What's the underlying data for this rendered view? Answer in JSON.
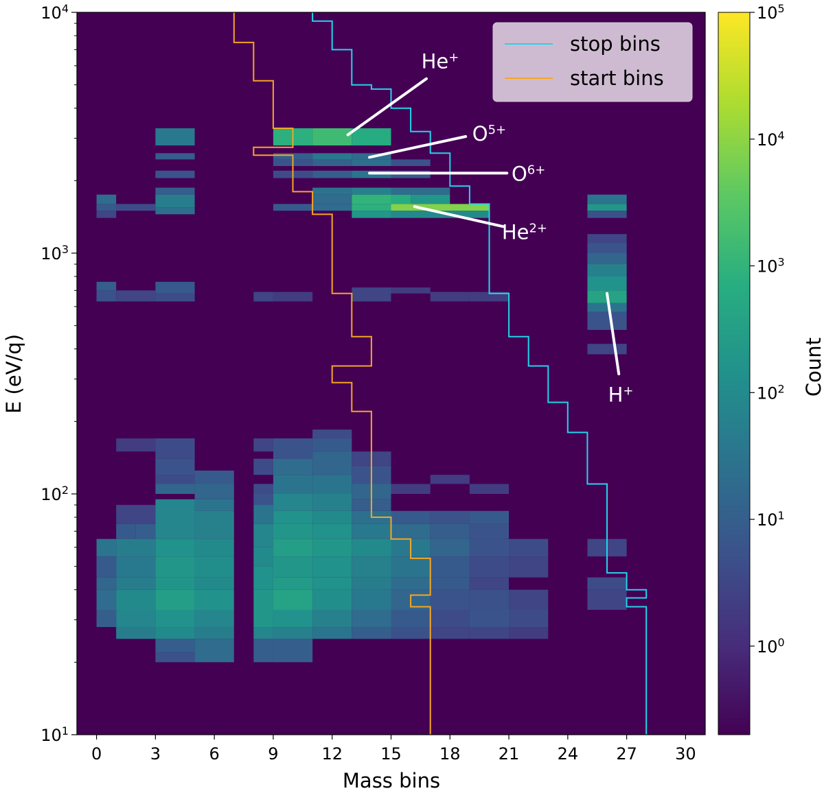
{
  "chart_data": {
    "type": "heatmap",
    "xlabel": "Mass bins",
    "ylabel": "E (eV/q)",
    "x_range": [
      -1,
      31
    ],
    "y_scale": "log",
    "y_range": [
      10,
      10000
    ],
    "x_ticks": [
      0,
      3,
      6,
      9,
      12,
      15,
      18,
      21,
      24,
      27,
      30
    ],
    "y_ticks": [
      {
        "base": "10",
        "exp": "1",
        "value": 10
      },
      {
        "base": "10",
        "exp": "2",
        "value": 100
      },
      {
        "base": "10",
        "exp": "3",
        "value": 1000
      },
      {
        "base": "10",
        "exp": "4",
        "value": 10000
      }
    ],
    "background_color": "#440154",
    "colorbar": {
      "label": "Count",
      "scale": "log",
      "range": [
        0.2,
        100000
      ],
      "ticks": [
        {
          "base": "10",
          "exp": "0",
          "value": 1
        },
        {
          "base": "10",
          "exp": "1",
          "value": 10
        },
        {
          "base": "10",
          "exp": "2",
          "value": 100
        },
        {
          "base": "10",
          "exp": "3",
          "value": 1000
        },
        {
          "base": "10",
          "exp": "4",
          "value": 10000
        },
        {
          "base": "10",
          "exp": "5",
          "value": 100000
        }
      ]
    },
    "cells_columns": [
      "mass_start",
      "mass_end",
      "e_low",
      "e_high",
      "count"
    ],
    "cells": [
      [
        3,
        5,
        2800,
        3300,
        40
      ],
      [
        3,
        5,
        2450,
        2600,
        10
      ],
      [
        3,
        5,
        2050,
        2200,
        6
      ],
      [
        3,
        5,
        1750,
        1870,
        10
      ],
      [
        3,
        5,
        1550,
        1750,
        50
      ],
      [
        3,
        5,
        1450,
        1550,
        25
      ],
      [
        0,
        1,
        1600,
        1750,
        20
      ],
      [
        0,
        1,
        1500,
        1600,
        8
      ],
      [
        0,
        1,
        1400,
        1500,
        3
      ],
      [
        1,
        3,
        1500,
        1600,
        4
      ],
      [
        0,
        1,
        700,
        760,
        10
      ],
      [
        0,
        1,
        630,
        700,
        5
      ],
      [
        1,
        3,
        630,
        700,
        3
      ],
      [
        3,
        5,
        680,
        760,
        8
      ],
      [
        3,
        5,
        630,
        680,
        4
      ],
      [
        9,
        11,
        2800,
        3300,
        800
      ],
      [
        11,
        13,
        2800,
        3300,
        1500
      ],
      [
        13,
        15,
        2800,
        3300,
        600
      ],
      [
        9,
        11,
        2450,
        2600,
        10
      ],
      [
        11,
        13,
        2450,
        2600,
        40
      ],
      [
        13,
        15,
        2450,
        2600,
        20
      ],
      [
        9,
        11,
        2300,
        2450,
        6
      ],
      [
        11,
        13,
        2300,
        2450,
        12
      ],
      [
        13,
        15,
        2300,
        2450,
        25
      ],
      [
        15,
        17,
        2300,
        2450,
        5
      ],
      [
        9,
        11,
        2050,
        2200,
        4
      ],
      [
        11,
        13,
        2050,
        2200,
        10
      ],
      [
        13,
        15,
        2050,
        2200,
        30
      ],
      [
        15,
        17,
        2050,
        2200,
        8
      ],
      [
        11,
        13,
        1750,
        1870,
        30
      ],
      [
        13,
        15,
        1750,
        1870,
        60
      ],
      [
        15,
        18,
        1750,
        1870,
        20
      ],
      [
        11,
        13,
        1600,
        1750,
        20
      ],
      [
        13,
        15,
        1600,
        1750,
        1000
      ],
      [
        15,
        16,
        1600,
        1750,
        600
      ],
      [
        16,
        18,
        1600,
        1750,
        200
      ],
      [
        9,
        11,
        1500,
        1600,
        8
      ],
      [
        11,
        13,
        1500,
        1600,
        20
      ],
      [
        13,
        15,
        1500,
        1600,
        800
      ],
      [
        15,
        20,
        1500,
        1600,
        8000
      ],
      [
        13,
        15,
        1400,
        1500,
        200
      ],
      [
        15,
        20,
        1400,
        1500,
        100
      ],
      [
        8,
        9,
        630,
        690,
        3
      ],
      [
        9,
        11,
        630,
        690,
        2
      ],
      [
        13,
        15,
        630,
        720,
        3
      ],
      [
        15,
        17,
        680,
        720,
        2
      ],
      [
        17,
        19,
        630,
        690,
        2
      ],
      [
        19,
        21,
        630,
        690,
        2
      ],
      [
        25,
        27,
        1600,
        1750,
        30
      ],
      [
        25,
        27,
        1500,
        1600,
        200
      ],
      [
        25,
        27,
        1400,
        1500,
        5
      ],
      [
        25,
        27,
        1100,
        1200,
        3
      ],
      [
        25,
        27,
        1000,
        1100,
        6
      ],
      [
        25,
        27,
        900,
        1000,
        15
      ],
      [
        25,
        27,
        800,
        900,
        60
      ],
      [
        25,
        27,
        700,
        800,
        150
      ],
      [
        25,
        27,
        620,
        700,
        400
      ],
      [
        25,
        27,
        570,
        620,
        30
      ],
      [
        25,
        27,
        480,
        570,
        6
      ],
      [
        25,
        27,
        380,
        420,
        3
      ],
      [
        1,
        3,
        150,
        170,
        2
      ],
      [
        3,
        5,
        140,
        170,
        4
      ],
      [
        3,
        5,
        120,
        140,
        6
      ],
      [
        3,
        5,
        110,
        120,
        4
      ],
      [
        3,
        5,
        100,
        110,
        15
      ],
      [
        5,
        7,
        110,
        125,
        8
      ],
      [
        5,
        7,
        95,
        110,
        15
      ],
      [
        5,
        7,
        85,
        95,
        30
      ],
      [
        1,
        3,
        75,
        90,
        3
      ],
      [
        1,
        2,
        65,
        75,
        8
      ],
      [
        2,
        3,
        65,
        75,
        10
      ],
      [
        3,
        5,
        65,
        95,
        80
      ],
      [
        5,
        7,
        65,
        85,
        60
      ],
      [
        0,
        1,
        55,
        65,
        30
      ],
      [
        1,
        3,
        55,
        65,
        50
      ],
      [
        3,
        5,
        55,
        65,
        150
      ],
      [
        5,
        7,
        55,
        65,
        100
      ],
      [
        0,
        1,
        45,
        55,
        8
      ],
      [
        1,
        3,
        45,
        55,
        40
      ],
      [
        3,
        5,
        45,
        55,
        200
      ],
      [
        5,
        7,
        45,
        55,
        120
      ],
      [
        0,
        1,
        40,
        45,
        15
      ],
      [
        1,
        3,
        40,
        45,
        50
      ],
      [
        3,
        5,
        40,
        45,
        180
      ],
      [
        5,
        7,
        40,
        45,
        100
      ],
      [
        0,
        1,
        33,
        40,
        20
      ],
      [
        1,
        3,
        33,
        40,
        100
      ],
      [
        3,
        5,
        33,
        40,
        300
      ],
      [
        5,
        7,
        33,
        40,
        150
      ],
      [
        0,
        1,
        28,
        33,
        10
      ],
      [
        1,
        3,
        28,
        33,
        80
      ],
      [
        3,
        5,
        28,
        33,
        150
      ],
      [
        5,
        7,
        28,
        33,
        80
      ],
      [
        1,
        3,
        25,
        28,
        50
      ],
      [
        3,
        5,
        25,
        28,
        100
      ],
      [
        5,
        7,
        25,
        28,
        50
      ],
      [
        3,
        5,
        22,
        25,
        10
      ],
      [
        3,
        5,
        20,
        22,
        5
      ],
      [
        5,
        7,
        20,
        25,
        20
      ],
      [
        8,
        9,
        150,
        170,
        3
      ],
      [
        8,
        9,
        120,
        140,
        4
      ],
      [
        8,
        9,
        100,
        110,
        4
      ],
      [
        8,
        9,
        90,
        100,
        6
      ],
      [
        8,
        9,
        75,
        90,
        30
      ],
      [
        8,
        9,
        60,
        75,
        80
      ],
      [
        8,
        9,
        50,
        60,
        100
      ],
      [
        8,
        9,
        40,
        50,
        150
      ],
      [
        8,
        9,
        28,
        40,
        200
      ],
      [
        8,
        9,
        25,
        28,
        80
      ],
      [
        8,
        9,
        20,
        25,
        10
      ],
      [
        9,
        11,
        140,
        170,
        6
      ],
      [
        9,
        11,
        120,
        140,
        20
      ],
      [
        9,
        11,
        100,
        120,
        30
      ],
      [
        9,
        11,
        85,
        100,
        80
      ],
      [
        9,
        11,
        75,
        85,
        150
      ],
      [
        9,
        11,
        65,
        75,
        200
      ],
      [
        9,
        11,
        55,
        65,
        300
      ],
      [
        9,
        11,
        45,
        55,
        200
      ],
      [
        9,
        11,
        40,
        45,
        250
      ],
      [
        9,
        11,
        33,
        40,
        400
      ],
      [
        9,
        11,
        28,
        33,
        150
      ],
      [
        9,
        11,
        25,
        28,
        60
      ],
      [
        9,
        11,
        20,
        25,
        10
      ],
      [
        11,
        13,
        170,
        185,
        4
      ],
      [
        11,
        13,
        150,
        170,
        8
      ],
      [
        11,
        13,
        120,
        150,
        15
      ],
      [
        11,
        13,
        100,
        120,
        30
      ],
      [
        11,
        13,
        85,
        100,
        60
      ],
      [
        11,
        13,
        75,
        85,
        100
      ],
      [
        11,
        13,
        65,
        75,
        150
      ],
      [
        11,
        13,
        55,
        65,
        200
      ],
      [
        11,
        13,
        45,
        55,
        150
      ],
      [
        11,
        13,
        40,
        45,
        150
      ],
      [
        11,
        13,
        33,
        40,
        120
      ],
      [
        11,
        13,
        28,
        33,
        60
      ],
      [
        11,
        13,
        25,
        28,
        30
      ],
      [
        13,
        15,
        130,
        150,
        3
      ],
      [
        13,
        15,
        110,
        130,
        6
      ],
      [
        13,
        15,
        95,
        110,
        15
      ],
      [
        13,
        15,
        85,
        95,
        10
      ],
      [
        13,
        15,
        75,
        85,
        25
      ],
      [
        13,
        15,
        65,
        75,
        40
      ],
      [
        13,
        15,
        55,
        65,
        100
      ],
      [
        13,
        15,
        45,
        55,
        60
      ],
      [
        13,
        15,
        40,
        45,
        50
      ],
      [
        13,
        15,
        33,
        40,
        40
      ],
      [
        13,
        15,
        28,
        33,
        20
      ],
      [
        13,
        15,
        25,
        28,
        10
      ],
      [
        15,
        17,
        100,
        110,
        2
      ],
      [
        15,
        17,
        75,
        85,
        8
      ],
      [
        15,
        17,
        65,
        75,
        20
      ],
      [
        15,
        17,
        55,
        65,
        40
      ],
      [
        15,
        17,
        45,
        55,
        30
      ],
      [
        15,
        17,
        40,
        45,
        20
      ],
      [
        15,
        17,
        33,
        40,
        15
      ],
      [
        15,
        17,
        28,
        33,
        8
      ],
      [
        15,
        17,
        25,
        28,
        5
      ],
      [
        17,
        19,
        110,
        120,
        2
      ],
      [
        17,
        19,
        75,
        85,
        6
      ],
      [
        17,
        19,
        65,
        75,
        10
      ],
      [
        17,
        19,
        55,
        65,
        15
      ],
      [
        17,
        19,
        45,
        55,
        8
      ],
      [
        17,
        19,
        40,
        45,
        8
      ],
      [
        17,
        19,
        33,
        40,
        6
      ],
      [
        17,
        19,
        28,
        33,
        4
      ],
      [
        17,
        19,
        25,
        28,
        3
      ],
      [
        19,
        21,
        100,
        110,
        2
      ],
      [
        19,
        21,
        75,
        85,
        8
      ],
      [
        19,
        21,
        65,
        75,
        6
      ],
      [
        19,
        21,
        55,
        65,
        6
      ],
      [
        19,
        21,
        45,
        55,
        4
      ],
      [
        19,
        21,
        40,
        45,
        3
      ],
      [
        19,
        21,
        33,
        40,
        5
      ],
      [
        19,
        21,
        28,
        33,
        6
      ],
      [
        19,
        21,
        25,
        28,
        3
      ],
      [
        21,
        23,
        55,
        65,
        4
      ],
      [
        21,
        23,
        45,
        55,
        3
      ],
      [
        21,
        23,
        33,
        40,
        3
      ],
      [
        21,
        23,
        28,
        33,
        4
      ],
      [
        21,
        23,
        25,
        28,
        2
      ],
      [
        25,
        27,
        55,
        65,
        3
      ],
      [
        25,
        27,
        40,
        45,
        4
      ],
      [
        25,
        27,
        33,
        40,
        3
      ]
    ],
    "series": [
      {
        "name": "stop bins",
        "color": "#22d4ec",
        "x": [
          11,
          11,
          12,
          12,
          13,
          13,
          14,
          14,
          15,
          15,
          16,
          16,
          17,
          17,
          18,
          18,
          19,
          19,
          20,
          20,
          21,
          21,
          22,
          22,
          23,
          23,
          24,
          24,
          25,
          25,
          26,
          26,
          27,
          27,
          28,
          28,
          27,
          27,
          28,
          28
        ],
        "y": [
          10000,
          9200,
          9200,
          7000,
          7000,
          5000,
          5000,
          4800,
          4800,
          4000,
          4000,
          3200,
          3200,
          2600,
          2600,
          1900,
          1900,
          1600,
          1600,
          680,
          680,
          450,
          450,
          340,
          340,
          240,
          240,
          180,
          180,
          110,
          110,
          47,
          47,
          40,
          40,
          37,
          37,
          34,
          34,
          10
        ]
      },
      {
        "name": "start bins",
        "color": "#f5a623",
        "x": [
          7,
          7,
          8,
          8,
          9,
          9,
          10,
          10,
          8,
          8,
          10,
          10,
          11,
          11,
          12,
          12,
          13,
          13,
          14,
          14,
          12,
          12,
          13,
          13,
          14,
          14,
          15,
          15,
          16,
          16,
          17,
          17,
          16,
          16,
          17,
          17
        ],
        "y": [
          10000,
          7500,
          7500,
          5200,
          5200,
          3300,
          3300,
          2750,
          2750,
          2550,
          2550,
          1800,
          1800,
          1450,
          1450,
          680,
          680,
          450,
          450,
          340,
          340,
          290,
          290,
          220,
          220,
          80,
          80,
          65,
          65,
          54,
          54,
          38,
          38,
          34,
          34,
          10
        ]
      }
    ],
    "annotations": [
      {
        "base": "He",
        "sup": "+",
        "x1": 12.8,
        "y1": 3100,
        "x2": 16.8,
        "y2": 5300,
        "tx": 17.5,
        "ty": 6300
      },
      {
        "base": "O",
        "sup": "5+",
        "x1": 13.9,
        "y1": 2500,
        "x2": 18.8,
        "y2": 3050,
        "tx": 20.0,
        "ty": 3150
      },
      {
        "base": "O",
        "sup": "6+",
        "x1": 13.9,
        "y1": 2150,
        "x2": 20.9,
        "y2": 2150,
        "tx": 22.0,
        "ty": 2150
      },
      {
        "base": "He",
        "sup": "2+",
        "x1": 16.2,
        "y1": 1560,
        "x2": 20.7,
        "y2": 1290,
        "tx": 21.8,
        "ty": 1230
      },
      {
        "base": "H",
        "sup": "+",
        "x1": 26.0,
        "y1": 680,
        "x2": 26.6,
        "y2": 315,
        "tx": 26.7,
        "ty": 260
      }
    ]
  }
}
